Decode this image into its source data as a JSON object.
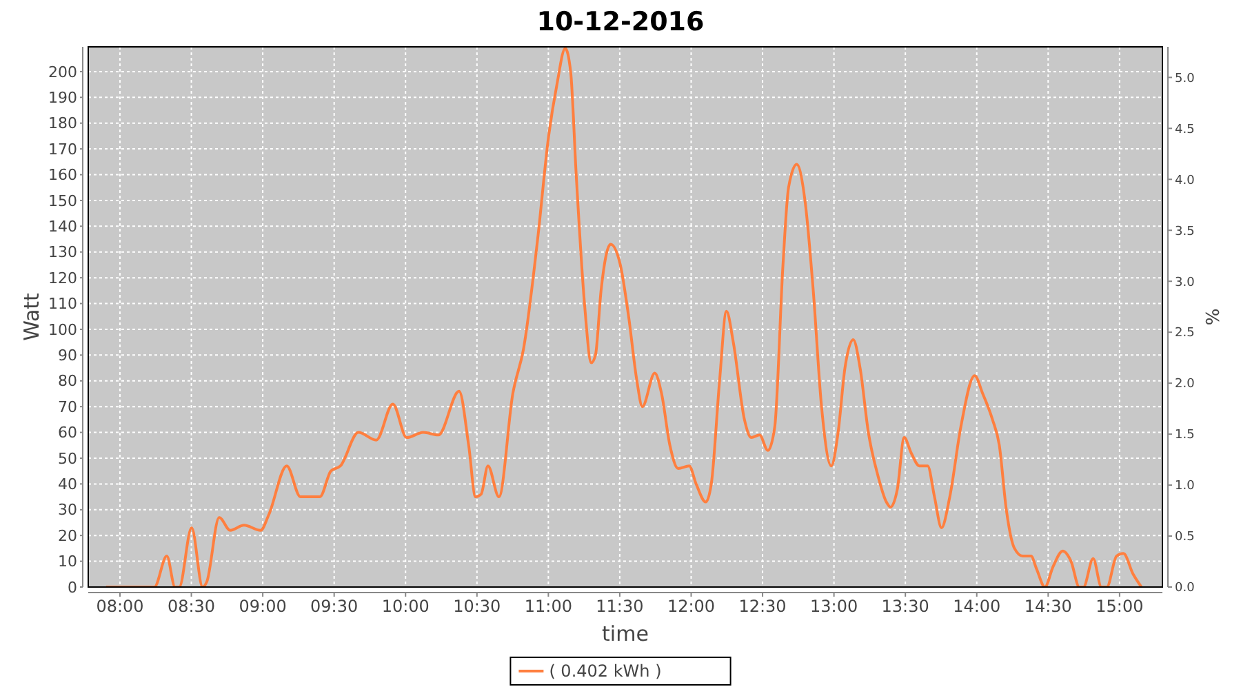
{
  "chart_data": {
    "type": "line",
    "title": "10-12-2016",
    "xlabel": "time",
    "ylabel": "Watt",
    "y2label": "%",
    "x": [
      7.903,
      8.125,
      8.203,
      8.241,
      8.328,
      8.386,
      8.415,
      8.502,
      8.579,
      8.608,
      8.695,
      8.772,
      8.869,
      8.985,
      9.042,
      9.168,
      9.264,
      9.332,
      9.4,
      9.477,
      9.544,
      9.67,
      9.795,
      9.911,
      10.008,
      10.124,
      10.23,
      10.375,
      10.442,
      10.49,
      10.529,
      10.577,
      10.654,
      10.751,
      10.828,
      10.925,
      11.002,
      11.06,
      11.118,
      11.156,
      11.195,
      11.253,
      11.301,
      11.33,
      11.369,
      11.436,
      11.504,
      11.562,
      11.62,
      11.658,
      11.745,
      11.793,
      11.851,
      11.909,
      11.986,
      12.035,
      12.102,
      12.141,
      12.199,
      12.247,
      12.295,
      12.373,
      12.421,
      12.479,
      12.537,
      12.585,
      12.643,
      12.682,
      12.739,
      12.797,
      12.855,
      12.913,
      12.981,
      13.029,
      13.077,
      13.135,
      13.183,
      13.241,
      13.309,
      13.367,
      13.396,
      13.444,
      13.492,
      13.541,
      13.598,
      13.656,
      13.704,
      13.753,
      13.811,
      13.888,
      13.985,
      14.042,
      14.11,
      14.158,
      14.207,
      14.264,
      14.322,
      14.38,
      14.419,
      14.477,
      14.535,
      14.602,
      14.66,
      14.718,
      14.747,
      14.815,
      14.873,
      14.911,
      14.979,
      15.027,
      15.095,
      15.153
    ],
    "series": [
      {
        "name": "( 0.402 kWh )",
        "color": "#ff7f3f",
        "values": [
          0,
          0,
          0,
          0,
          12,
          0,
          0,
          23,
          0,
          2,
          27,
          22,
          24,
          22,
          28,
          47,
          35,
          35,
          35,
          45,
          47,
          60,
          57,
          71,
          58,
          60,
          59,
          76,
          55,
          35,
          36,
          47,
          35,
          75,
          93,
          135,
          175,
          195,
          209,
          200,
          160,
          110,
          87,
          90,
          115,
          133,
          125,
          105,
          80,
          70,
          83,
          75,
          55,
          46,
          47,
          40,
          33,
          40,
          80,
          107,
          95,
          65,
          58,
          59,
          53,
          62,
          125,
          155,
          164,
          150,
          115,
          70,
          47,
          60,
          85,
          96,
          85,
          60,
          43,
          33,
          31,
          38,
          58,
          52,
          47,
          47,
          35,
          23,
          35,
          62,
          82,
          75,
          65,
          55,
          30,
          15,
          12,
          12,
          7,
          0,
          8,
          14,
          10,
          0,
          0,
          11,
          0,
          0,
          12,
          13,
          5,
          0
        ]
      }
    ],
    "xlim": [
      7.778,
      15.3
    ],
    "xticks": [
      {
        "value": 8,
        "label": "08:00"
      },
      {
        "value": 8.5,
        "label": "08:30"
      },
      {
        "value": 9,
        "label": "09:00"
      },
      {
        "value": 9.5,
        "label": "09:30"
      },
      {
        "value": 10,
        "label": "10:00"
      },
      {
        "value": 10.5,
        "label": "10:30"
      },
      {
        "value": 11,
        "label": "11:00"
      },
      {
        "value": 11.5,
        "label": "11:30"
      },
      {
        "value": 12,
        "label": "12:00"
      },
      {
        "value": 12.5,
        "label": "12:30"
      },
      {
        "value": 13,
        "label": "13:00"
      },
      {
        "value": 13.5,
        "label": "13:30"
      },
      {
        "value": 14,
        "label": "14:00"
      },
      {
        "value": 14.5,
        "label": "14:30"
      },
      {
        "value": 15,
        "label": "15:00"
      }
    ],
    "ylim": [
      0,
      209.6
    ],
    "yticks": [
      0,
      10,
      20,
      30,
      40,
      50,
      60,
      70,
      80,
      90,
      100,
      110,
      120,
      130,
      140,
      150,
      160,
      170,
      180,
      190,
      200
    ],
    "y2lim": [
      0,
      5.3
    ],
    "y2ticks": [
      {
        "value": 0,
        "label": "0.0"
      },
      {
        "value": 0.5,
        "label": "0.5"
      },
      {
        "value": 1,
        "label": "1.0"
      },
      {
        "value": 1.5,
        "label": "1.5"
      },
      {
        "value": 2,
        "label": "2.0"
      },
      {
        "value": 2.5,
        "label": "2.5"
      },
      {
        "value": 3,
        "label": "3.0"
      },
      {
        "value": 3.5,
        "label": "3.5"
      },
      {
        "value": 4,
        "label": "4.0"
      },
      {
        "value": 4.5,
        "label": "4.5"
      },
      {
        "value": 5,
        "label": "5.0"
      }
    ],
    "grid": true,
    "legend": "bottom",
    "line_style": "solid",
    "marker": "none"
  }
}
